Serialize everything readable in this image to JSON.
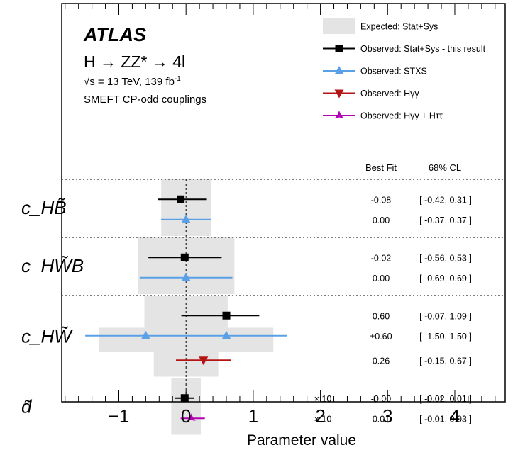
{
  "chart_data": {
    "type": "scatter",
    "experiment": "ATLAS",
    "process": "H → ZZ* → 4l",
    "energy_label": "√s = 13 TeV, 139 fb",
    "lumi_superscript": "-1",
    "subtitle": "SMEFT CP-odd couplings",
    "xlabel": "Parameter value",
    "xlim": [
      -1.85,
      4.75
    ],
    "xticks": [
      -1,
      0,
      1,
      2,
      3,
      4
    ],
    "xtick_labels": [
      "−1",
      "0",
      "1",
      "2",
      "3",
      "4"
    ],
    "column_headers": {
      "best_fit": "Best Fit",
      "cl": "68% CL"
    },
    "scale_note": "× 10",
    "series": [
      {
        "name": "Expected: Stat+Sys",
        "style": "band",
        "color": "#e4e4e4"
      },
      {
        "name": "Observed: Stat+Sys - this result",
        "style": "square",
        "color": "#000000"
      },
      {
        "name": "Observed: STXS",
        "style": "triangle-up",
        "color": "#5aa0e6"
      },
      {
        "name": "Observed: Hγγ",
        "style": "triangle-down",
        "color": "#b41414"
      },
      {
        "name": "Observed: Hγγ + Hττ",
        "style": "star",
        "color": "#b400b4"
      }
    ],
    "groups": [
      {
        "parameter": "c_HB̃",
        "rows": [
          {
            "series": "Observed: Stat+Sys - this result",
            "best": [
              -0.08
            ],
            "low": -0.42,
            "high": 0.31,
            "exp": [
              -0.37,
              0.37
            ],
            "best_fit_text": "-0.08",
            "cl_text": "[ -0.42, 0.31 ]",
            "scaled": false
          },
          {
            "series": "Observed: STXS",
            "best": [
              0.0
            ],
            "low": -0.37,
            "high": 0.37,
            "exp": [
              -0.37,
              0.37
            ],
            "best_fit_text": "0.00",
            "cl_text": "[ -0.37, 0.37 ]",
            "scaled": false
          }
        ]
      },
      {
        "parameter": "c_HW̃B",
        "rows": [
          {
            "series": "Observed: Stat+Sys - this result",
            "best": [
              -0.02
            ],
            "low": -0.56,
            "high": 0.53,
            "exp": [
              -0.72,
              0.72
            ],
            "best_fit_text": "-0.02",
            "cl_text": "[ -0.56, 0.53 ]",
            "scaled": false
          },
          {
            "series": "Observed: STXS",
            "best": [
              0.0
            ],
            "low": -0.69,
            "high": 0.69,
            "exp": [
              -0.72,
              0.72
            ],
            "best_fit_text": "0.00",
            "cl_text": "[ -0.69, 0.69 ]",
            "scaled": false
          }
        ]
      },
      {
        "parameter": "c_HW̃",
        "rows": [
          {
            "series": "Observed: Stat+Sys - this result",
            "best": [
              0.6
            ],
            "low": -0.07,
            "high": 1.09,
            "exp": [
              -0.62,
              0.62
            ],
            "best_fit_text": "0.60",
            "cl_text": "[ -0.07, 1.09 ]",
            "scaled": false
          },
          {
            "series": "Observed: STXS",
            "best": [
              -0.6,
              0.6
            ],
            "low": -1.5,
            "high": 1.5,
            "exp": [
              -1.3,
              1.3
            ],
            "best_fit_text": "±0.60",
            "cl_text": "[ -1.50, 1.50 ]",
            "scaled": false
          },
          {
            "series": "Observed: Hγγ",
            "best": [
              0.26
            ],
            "low": -0.15,
            "high": 0.67,
            "exp": [
              -0.48,
              0.48
            ],
            "best_fit_text": "0.26",
            "cl_text": "[ -0.15, 0.67 ]",
            "scaled": false
          }
        ]
      },
      {
        "parameter": "d̃",
        "rows": [
          {
            "series": "Observed: Stat+Sys - this result",
            "best": [
              -0.02
            ],
            "low": -0.16,
            "high": 0.12,
            "exp": [
              -0.22,
              0.22
            ],
            "best_fit_text": "-0.00",
            "cl_text": "[ -0.02, 0.01 ]",
            "scaled": true
          },
          {
            "series": "Observed: Hγγ + Hττ",
            "best": [
              0.08
            ],
            "low": -0.08,
            "high": 0.28,
            "exp": [
              -0.22,
              0.22
            ],
            "best_fit_text": "0.01",
            "cl_text": "[ -0.01, 0.03 ]",
            "scaled": true
          }
        ]
      }
    ]
  }
}
